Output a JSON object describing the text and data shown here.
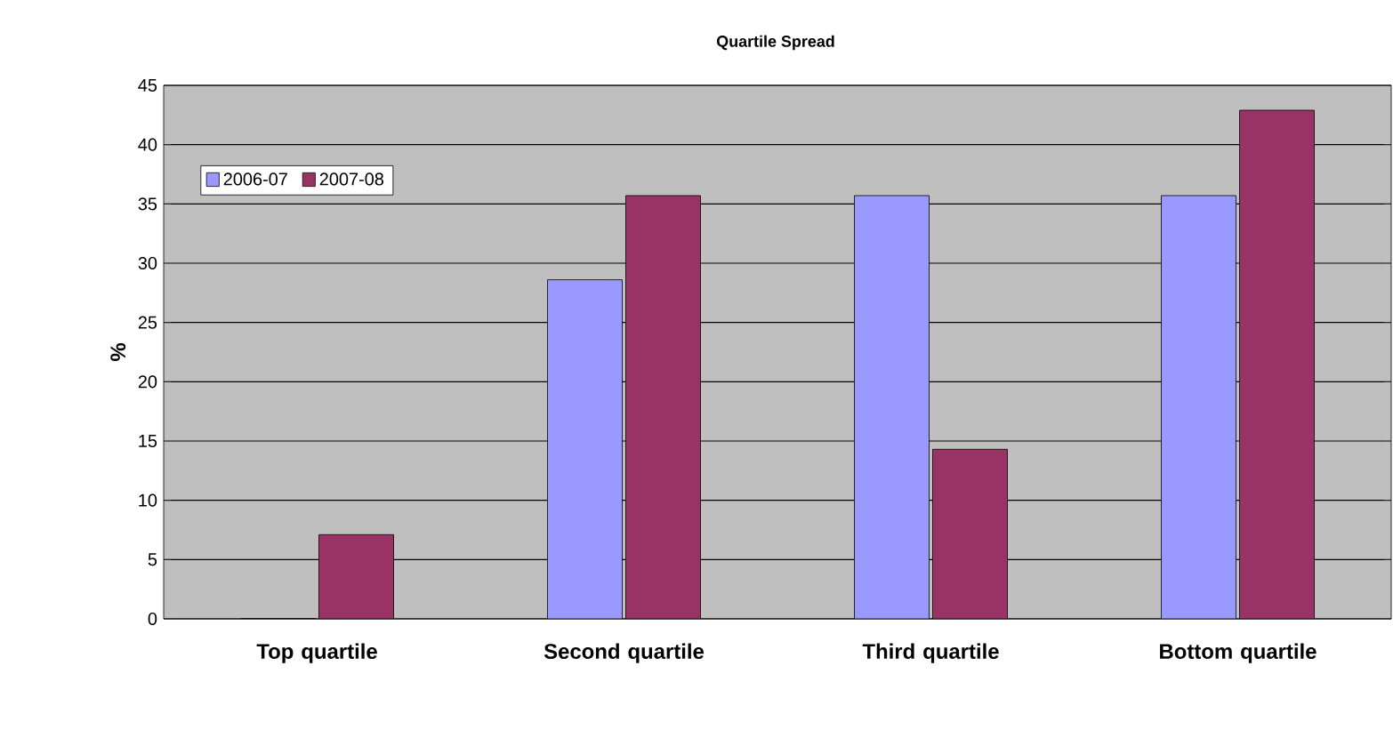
{
  "chart_data": {
    "type": "bar",
    "title": "Quartile Spread",
    "ylabel": "%",
    "categories": [
      "Top quartile",
      "Second quartile",
      "Third quartile",
      "Bottom quartile"
    ],
    "series": [
      {
        "name": "2006-07",
        "color": "#9999ff",
        "values": [
          0,
          28.6,
          35.7,
          35.7
        ]
      },
      {
        "name": "2007-08",
        "color": "#993366",
        "values": [
          7.1,
          35.7,
          14.3,
          42.9
        ]
      }
    ],
    "ylim": [
      0,
      45
    ],
    "yticks": [
      0,
      5,
      10,
      15,
      20,
      25,
      30,
      35,
      40,
      45
    ],
    "grid": "y",
    "legend": "top left"
  }
}
